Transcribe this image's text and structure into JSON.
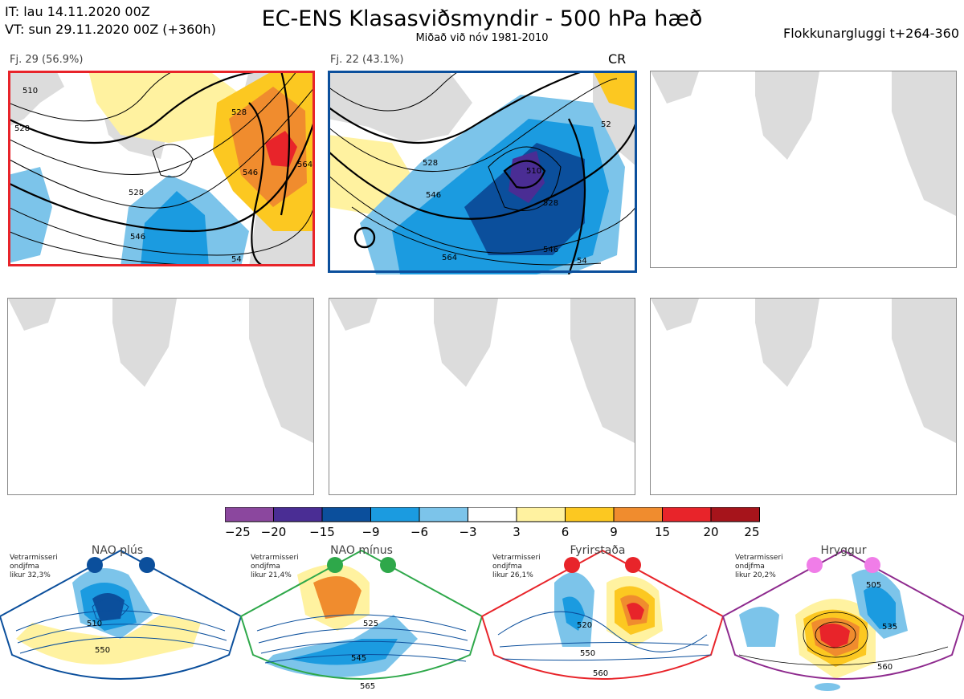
{
  "header": {
    "it_line": "IT: lau 14.11.2020 00Z",
    "vt_line": "VT: sun 29.11.2020 00Z  (+360h)",
    "title": "EC-ENS Klasasviðsmyndir - 500 hPa hæð",
    "subtitle": "Miðað við nóv 1981-2010",
    "window": "Flokkunargluggi t+264-360"
  },
  "clusters": [
    {
      "label": "Fj. 29 (56.9%)",
      "frame_color": "#e8242a",
      "contours": [
        "510",
        "528",
        "528",
        "546",
        "528",
        "546",
        "564",
        "54"
      ]
    },
    {
      "label": "Fj. 22 (43.1%)",
      "frame_color": "#0b4f9c",
      "tag": "CR",
      "contours": [
        "528",
        "546",
        "510",
        "528",
        "564",
        "546",
        "54",
        "52"
      ]
    }
  ],
  "colorbar": {
    "ticks": [
      "−25",
      "−20",
      "−15",
      "−9",
      "−6",
      "−3",
      "3",
      "6",
      "9",
      "15",
      "20",
      "25"
    ],
    "colors": [
      "#8b479e",
      "#4a2d94",
      "#0b4f9c",
      "#1b9be0",
      "#7cc4ea",
      "#ffffff",
      "#fff2a0",
      "#fcc821",
      "#f08c2e",
      "#e8242a",
      "#a6141b"
    ]
  },
  "regimes": [
    {
      "name": "NAO plús",
      "note": [
        "Vetrarmisseri",
        "ondjfma",
        "likur 32,3%"
      ],
      "color": "#0b4f9c",
      "dot_color": "#0b4f9c",
      "labels": [
        "510",
        "550"
      ]
    },
    {
      "name": "NAO mínus",
      "note": [
        "Vetrarmisseri",
        "ondjfma",
        "likur 21,4%"
      ],
      "color": "#2ea84a",
      "dot_color": "#2ea84a",
      "labels": [
        "525",
        "545",
        "565"
      ]
    },
    {
      "name": "Fyrirstaða",
      "note": [
        "Vetrarmisseri",
        "ondjfma",
        "likur 26,1%"
      ],
      "color": "#e8242a",
      "dot_color": "#e8242a",
      "labels": [
        "520",
        "550",
        "560"
      ]
    },
    {
      "name": "Hryggur",
      "note": [
        "Vetrarmisseri",
        "ondjfma",
        "likur 20,2%"
      ],
      "color": "#8e2a8e",
      "dot_color": "#f07de8",
      "labels": [
        "505",
        "535",
        "560"
      ]
    }
  ]
}
